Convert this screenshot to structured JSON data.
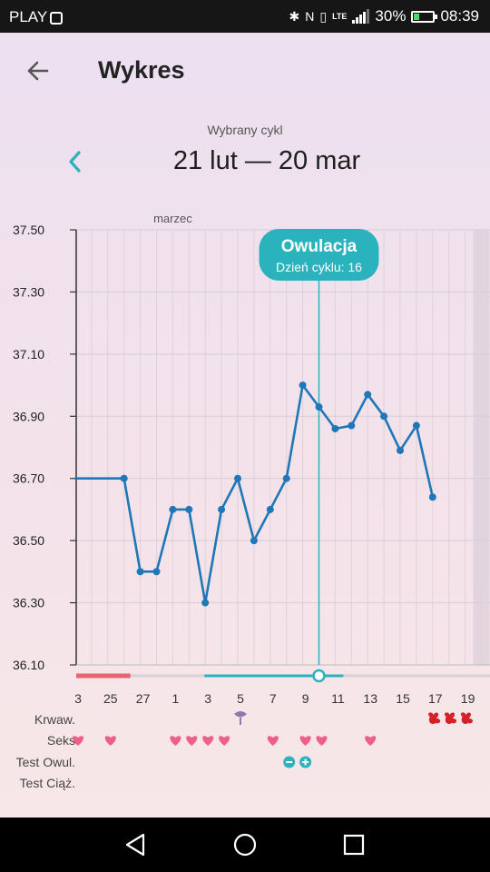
{
  "status_bar": {
    "carrier": "PLAY",
    "network": "LTE",
    "battery_percent": "30%",
    "battery_level": 0.3,
    "time": "08:39",
    "icons": [
      "bluetooth-icon",
      "nfc-icon",
      "vibrate-icon",
      "signal-icon",
      "battery-icon"
    ]
  },
  "header": {
    "title": "Wykres",
    "back_icon": "arrow-left-icon"
  },
  "cycle": {
    "label": "Wybrany cykl",
    "range": "21 lut — 20 mar",
    "prev_icon": "chevron-left-icon"
  },
  "colors": {
    "accent": "#2bb3bd",
    "line": "#1f77b8",
    "menses": "#e96371",
    "heart": "#ee5f8c",
    "blood": "#d6202a"
  },
  "chart_data": {
    "type": "line",
    "ylim": [
      36.1,
      37.5
    ],
    "yticks": [
      "37.50",
      "37.30",
      "37.10",
      "36.90",
      "36.70",
      "36.50",
      "36.30",
      "36.10"
    ],
    "ytick_values": [
      37.5,
      37.3,
      37.1,
      36.9,
      36.7,
      36.5,
      36.3,
      36.1
    ],
    "month_label": "marzec",
    "xtick_labels": [
      "3",
      "25",
      "27",
      "1",
      "3",
      "5",
      "7",
      "9",
      "11",
      "13",
      "15",
      "17",
      "19"
    ],
    "days": [
      -1,
      0,
      1,
      2,
      3,
      4,
      5,
      6,
      7,
      8,
      9,
      10,
      11,
      12,
      13,
      14,
      15,
      16,
      17,
      18,
      19,
      20,
      21,
      22,
      23,
      24,
      25,
      26,
      27
    ],
    "temperatures": [
      36.7,
      36.7,
      36.7,
      36.7,
      36.4,
      36.4,
      36.6,
      36.6,
      36.3,
      36.6,
      36.7,
      36.5,
      36.6,
      36.7,
      37.0,
      36.93,
      36.86,
      36.87,
      36.97,
      36.9,
      36.79,
      36.87,
      36.64
    ],
    "temp_start_day": 1,
    "ovulation": {
      "title": "Owulacja",
      "subtitle": "Dzień cyklu: 16",
      "day": 16
    },
    "today_day": 26,
    "fertile_days": [
      9,
      17
    ],
    "menses_days": [
      1,
      4
    ],
    "rows": {
      "bleeding": {
        "label": "Krwaw.",
        "spotting_days": [
          11
        ],
        "bleeding_days": [
          23,
          24,
          25
        ]
      },
      "sex": {
        "label": "Seks",
        "heart_days": [
          3,
          7,
          8,
          9,
          10,
          13,
          15,
          16,
          19
        ]
      },
      "ovulation_test": {
        "label": "Test Owul.",
        "negative_days": [
          14
        ],
        "positive_days": [
          15
        ]
      },
      "pregnancy_test": {
        "label": "Test Ciąż.",
        "days": []
      }
    }
  }
}
